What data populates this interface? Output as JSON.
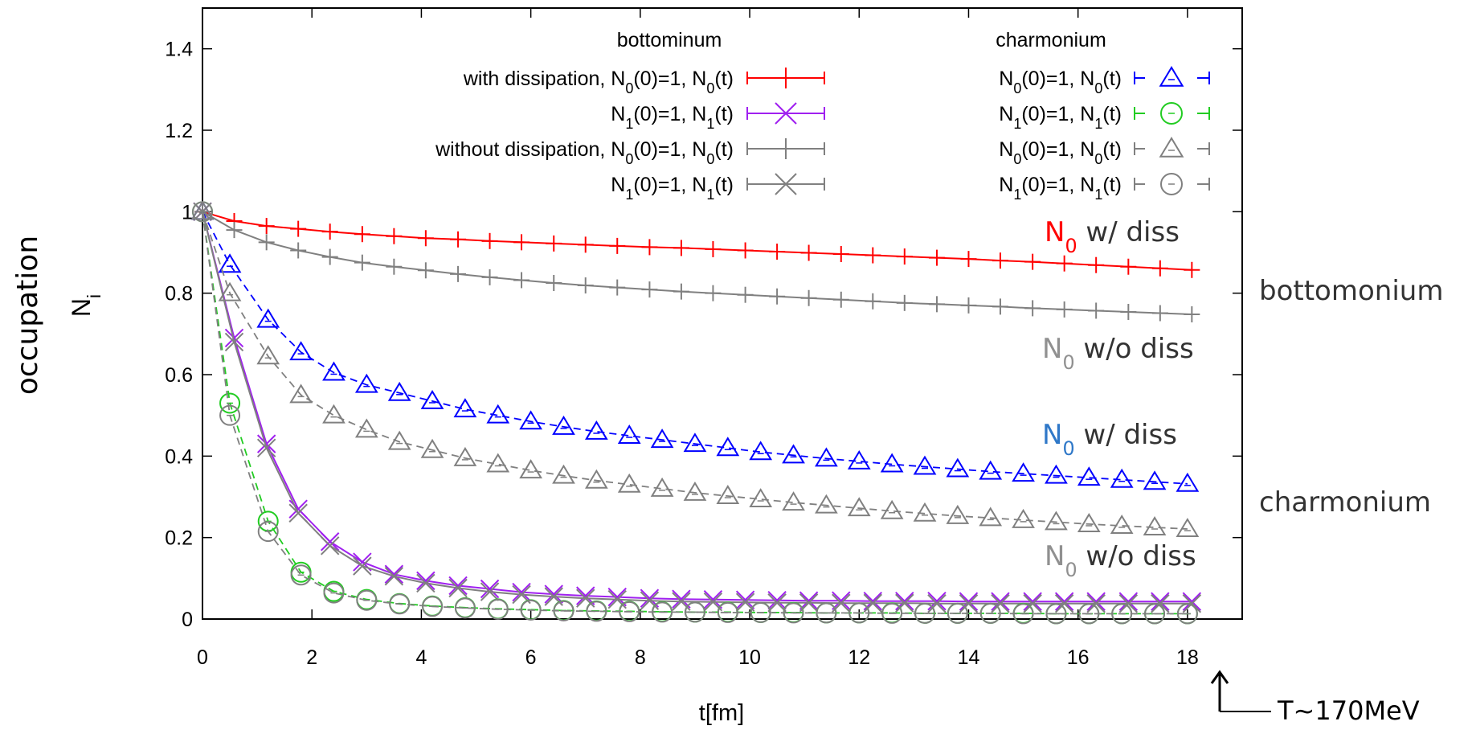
{
  "chart_data": {
    "type": "line",
    "xlabel": "t[fm]",
    "ylabel": "occupation",
    "ylabel_symbol": "N",
    "ylabel_sub": "i",
    "xlim": [
      0,
      19
    ],
    "ylim": [
      0,
      1.5
    ],
    "x_ticks": [
      "0",
      "2",
      "4",
      "6",
      "8",
      "10",
      "12",
      "14",
      "16",
      "18"
    ],
    "y_ticks": [
      "0",
      "0.2",
      "0.4",
      "0.6",
      "0.8",
      "1",
      "1.2",
      "1.4"
    ],
    "x_tick_values": [
      0,
      2,
      4,
      6,
      8,
      10,
      12,
      14,
      16,
      18
    ],
    "y_tick_values": [
      0,
      0.2,
      0.4,
      0.6,
      0.8,
      1,
      1.2,
      1.4
    ],
    "grid": false,
    "legend_placement": "top-right",
    "legend": {
      "bottom_header": "bottominum",
      "charm_header": "charmonium",
      "row_prefixes": [
        "with dissipation,",
        "",
        "without dissipation,",
        ""
      ],
      "bottom_labels": [
        {
          "prefix": "with dissipation,",
          "a": "N",
          "as": "0",
          "b": "(0)=1, N",
          "bs": "0",
          "c": "(t)"
        },
        {
          "prefix": "",
          "a": "N",
          "as": "1",
          "b": "(0)=1, N",
          "bs": "1",
          "c": "(t)"
        },
        {
          "prefix": "without dissipation,",
          "a": "N",
          "as": "0",
          "b": "(0)=1, N",
          "bs": "0",
          "c": "(t)"
        },
        {
          "prefix": "",
          "a": "N",
          "as": "1",
          "b": "(0)=1, N",
          "bs": "1",
          "c": "(t)"
        }
      ],
      "charm_labels": [
        {
          "a": "N",
          "as": "0",
          "b": "(0)=1, N",
          "bs": "0",
          "c": "(t)"
        },
        {
          "a": "N",
          "as": "1",
          "b": "(0)=1, N",
          "bs": "1",
          "c": "(t)"
        },
        {
          "a": "N",
          "as": "0",
          "b": "(0)=1, N",
          "bs": "0",
          "c": "(t)"
        },
        {
          "a": "N",
          "as": "1",
          "b": "(0)=1, N",
          "bs": "1",
          "c": "(t)"
        }
      ]
    },
    "series": [
      {
        "group": "bottomonium",
        "marker": "plus",
        "dash": false,
        "color": "#ff0000",
        "x": [
          0,
          0.58,
          1.17,
          1.75,
          2.33,
          2.92,
          3.5,
          4.08,
          4.67,
          5.25,
          5.83,
          6.42,
          7.0,
          7.58,
          8.17,
          8.75,
          9.33,
          9.92,
          10.5,
          11.08,
          11.67,
          12.25,
          12.83,
          13.42,
          14.0,
          14.58,
          15.17,
          15.75,
          16.33,
          16.92,
          17.5,
          18.08
        ],
        "values": [
          1.0,
          0.977,
          0.965,
          0.958,
          0.951,
          0.945,
          0.94,
          0.935,
          0.932,
          0.928,
          0.925,
          0.922,
          0.919,
          0.916,
          0.913,
          0.911,
          0.908,
          0.905,
          0.902,
          0.899,
          0.896,
          0.893,
          0.89,
          0.887,
          0.884,
          0.88,
          0.877,
          0.873,
          0.869,
          0.865,
          0.861,
          0.857
        ]
      },
      {
        "group": "bottomonium",
        "marker": "cross",
        "dash": false,
        "color": "#a020f0",
        "x": [
          0,
          0.58,
          1.17,
          1.75,
          2.33,
          2.92,
          3.5,
          4.08,
          4.67,
          5.25,
          5.83,
          6.42,
          7.0,
          7.58,
          8.17,
          8.75,
          9.33,
          9.92,
          10.5,
          11.08,
          11.67,
          12.25,
          12.83,
          13.42,
          14.0,
          14.58,
          15.17,
          15.75,
          16.33,
          16.92,
          17.5,
          18.08
        ],
        "values": [
          1.0,
          0.69,
          0.43,
          0.27,
          0.19,
          0.14,
          0.11,
          0.094,
          0.082,
          0.074,
          0.066,
          0.061,
          0.057,
          0.054,
          0.051,
          0.049,
          0.048,
          0.047,
          0.046,
          0.045,
          0.045,
          0.044,
          0.044,
          0.044,
          0.043,
          0.043,
          0.043,
          0.043,
          0.043,
          0.043,
          0.043,
          0.043
        ]
      },
      {
        "group": "bottomonium",
        "marker": "plus",
        "dash": false,
        "color": "#808080",
        "x": [
          0,
          0.58,
          1.17,
          1.75,
          2.33,
          2.92,
          3.5,
          4.08,
          4.67,
          5.25,
          5.83,
          6.42,
          7.0,
          7.58,
          8.17,
          8.75,
          9.33,
          9.92,
          10.5,
          11.08,
          11.67,
          12.25,
          12.83,
          13.42,
          14.0,
          14.58,
          15.17,
          15.75,
          16.33,
          16.92,
          17.5,
          18.08
        ],
        "values": [
          1.0,
          0.955,
          0.925,
          0.905,
          0.889,
          0.875,
          0.865,
          0.856,
          0.847,
          0.839,
          0.832,
          0.825,
          0.819,
          0.814,
          0.809,
          0.804,
          0.8,
          0.796,
          0.792,
          0.788,
          0.784,
          0.78,
          0.776,
          0.773,
          0.77,
          0.767,
          0.763,
          0.76,
          0.757,
          0.754,
          0.751,
          0.748
        ]
      },
      {
        "group": "bottomonium",
        "marker": "cross",
        "dash": false,
        "color": "#808080",
        "x": [
          0,
          0.58,
          1.17,
          1.75,
          2.33,
          2.92,
          3.5,
          4.08,
          4.67,
          5.25,
          5.83,
          6.42,
          7.0,
          7.58,
          8.17,
          8.75,
          9.33,
          9.92,
          10.5,
          11.08,
          11.67,
          12.25,
          12.83,
          13.42,
          14.0,
          14.58,
          15.17,
          15.75,
          16.33,
          16.92,
          17.5,
          18.08
        ],
        "values": [
          1.0,
          0.68,
          0.42,
          0.26,
          0.18,
          0.13,
          0.105,
          0.088,
          0.076,
          0.067,
          0.06,
          0.055,
          0.051,
          0.048,
          0.045,
          0.043,
          0.042,
          0.041,
          0.04,
          0.04,
          0.039,
          0.039,
          0.039,
          0.038,
          0.038,
          0.038,
          0.038,
          0.038,
          0.038,
          0.038,
          0.038,
          0.038
        ]
      },
      {
        "group": "charmonium",
        "marker": "triangle",
        "dash": true,
        "color": "#0000ff",
        "x": [
          0,
          0.5,
          1.2,
          1.8,
          2.4,
          3.0,
          3.6,
          4.2,
          4.8,
          5.4,
          6.0,
          6.6,
          7.2,
          7.8,
          8.4,
          9.0,
          9.6,
          10.2,
          10.8,
          11.4,
          12.0,
          12.6,
          13.2,
          13.8,
          14.4,
          15.0,
          15.6,
          16.2,
          16.8,
          17.4,
          18.0
        ],
        "values": [
          1.0,
          0.87,
          0.735,
          0.655,
          0.605,
          0.575,
          0.555,
          0.535,
          0.515,
          0.5,
          0.485,
          0.472,
          0.46,
          0.45,
          0.44,
          0.43,
          0.42,
          0.41,
          0.402,
          0.394,
          0.387,
          0.38,
          0.374,
          0.368,
          0.362,
          0.357,
          0.352,
          0.347,
          0.342,
          0.337,
          0.332
        ]
      },
      {
        "group": "charmonium",
        "marker": "circle",
        "dash": true,
        "color": "#22cc22",
        "x": [
          0,
          0.5,
          1.2,
          1.8,
          2.4,
          3.0,
          3.6,
          4.2,
          4.8,
          5.4,
          6.0,
          6.6,
          7.2,
          7.8,
          8.4,
          9.0,
          9.6,
          10.2,
          10.8,
          11.4,
          12.0,
          12.6,
          13.2,
          13.8,
          14.4,
          15.0,
          15.6,
          16.2,
          16.8,
          17.4,
          18.0
        ],
        "values": [
          1.0,
          0.53,
          0.24,
          0.115,
          0.068,
          0.048,
          0.038,
          0.032,
          0.028,
          0.025,
          0.023,
          0.021,
          0.02,
          0.019,
          0.018,
          0.017,
          0.017,
          0.016,
          0.016,
          0.015,
          0.015,
          0.015,
          0.014,
          0.014,
          0.014,
          0.014,
          0.013,
          0.013,
          0.013,
          0.013,
          0.013
        ]
      },
      {
        "group": "charmonium",
        "marker": "triangle",
        "dash": true,
        "color": "#808080",
        "x": [
          0,
          0.5,
          1.2,
          1.8,
          2.4,
          3.0,
          3.6,
          4.2,
          4.8,
          5.4,
          6.0,
          6.6,
          7.2,
          7.8,
          8.4,
          9.0,
          9.6,
          10.2,
          10.8,
          11.4,
          12.0,
          12.6,
          13.2,
          13.8,
          14.4,
          15.0,
          15.6,
          16.2,
          16.8,
          17.4,
          18.0
        ],
        "values": [
          1.0,
          0.8,
          0.645,
          0.55,
          0.5,
          0.465,
          0.435,
          0.415,
          0.395,
          0.38,
          0.365,
          0.352,
          0.34,
          0.33,
          0.32,
          0.31,
          0.302,
          0.294,
          0.286,
          0.279,
          0.272,
          0.265,
          0.259,
          0.253,
          0.248,
          0.243,
          0.238,
          0.233,
          0.229,
          0.225,
          0.221
        ]
      },
      {
        "group": "charmonium",
        "marker": "circle",
        "dash": true,
        "color": "#808080",
        "x": [
          0,
          0.5,
          1.2,
          1.8,
          2.4,
          3.0,
          3.6,
          4.2,
          4.8,
          5.4,
          6.0,
          6.6,
          7.2,
          7.8,
          8.4,
          9.0,
          9.6,
          10.2,
          10.8,
          11.4,
          12.0,
          12.6,
          13.2,
          13.8,
          14.4,
          15.0,
          15.6,
          16.2,
          16.8,
          17.4,
          18.0
        ],
        "values": [
          1.0,
          0.5,
          0.215,
          0.108,
          0.064,
          0.046,
          0.037,
          0.031,
          0.027,
          0.024,
          0.022,
          0.02,
          0.019,
          0.018,
          0.017,
          0.017,
          0.016,
          0.016,
          0.015,
          0.015,
          0.015,
          0.014,
          0.014,
          0.014,
          0.014,
          0.013,
          0.013,
          0.013,
          0.013,
          0.013,
          0.013
        ]
      }
    ],
    "annotations": [
      {
        "sym": "N",
        "sub": "0",
        "text": "w/ diss",
        "color": "#ff0000"
      },
      {
        "sym": "N",
        "sub": "0",
        "text": "w/o diss",
        "color": "#909090"
      },
      {
        "sym": "N",
        "sub": "0",
        "text": "w/ diss",
        "color": "#2f78c8"
      },
      {
        "sym": "N",
        "sub": "0",
        "text": "w/o diss",
        "color": "#909090"
      }
    ],
    "side_labels": [
      "bottomonium",
      "charmonium"
    ],
    "temperature_label": "T~170MeV"
  }
}
